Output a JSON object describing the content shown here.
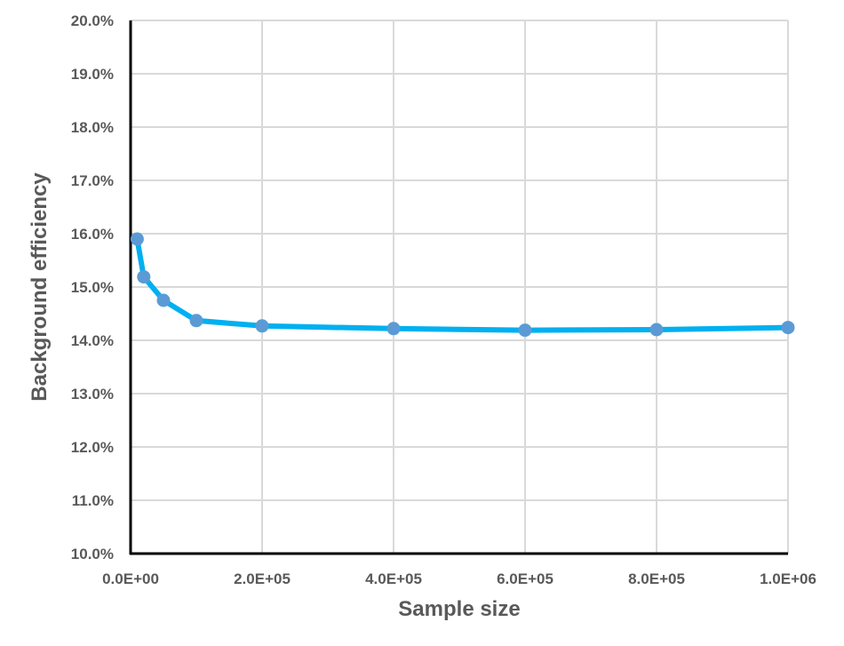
{
  "chart_data": {
    "type": "line",
    "xlabel": "Sample size",
    "ylabel": "Background efficiency",
    "xlim": [
      0,
      1000000
    ],
    "ylim": [
      0.1,
      0.2
    ],
    "x_ticks": [
      0,
      200000,
      400000,
      600000,
      800000,
      1000000
    ],
    "x_tick_labels": [
      "0.0E+00",
      "2.0E+05",
      "4.0E+05",
      "6.0E+05",
      "8.0E+05",
      "1.0E+06"
    ],
    "y_ticks": [
      0.1,
      0.11,
      0.12,
      0.13,
      0.14,
      0.15,
      0.16,
      0.17,
      0.18,
      0.19,
      0.2
    ],
    "y_tick_labels": [
      "10.0%",
      "11.0%",
      "12.0%",
      "13.0%",
      "14.0%",
      "15.0%",
      "16.0%",
      "17.0%",
      "18.0%",
      "19.0%",
      "20.0%"
    ],
    "grid": true,
    "series": [
      {
        "x": [
          10000,
          20000,
          50000,
          100000,
          200000,
          400000,
          600000,
          800000,
          1000000
        ],
        "y": [
          0.159,
          0.1519,
          0.1475,
          0.1437,
          0.1427,
          0.1422,
          0.1419,
          0.142,
          0.1424
        ]
      }
    ],
    "colors": {
      "line": "#00B0F0",
      "marker": "#5B9BD5",
      "grid": "#D9D9D9",
      "axis": "#000000",
      "text": "#595959"
    }
  }
}
